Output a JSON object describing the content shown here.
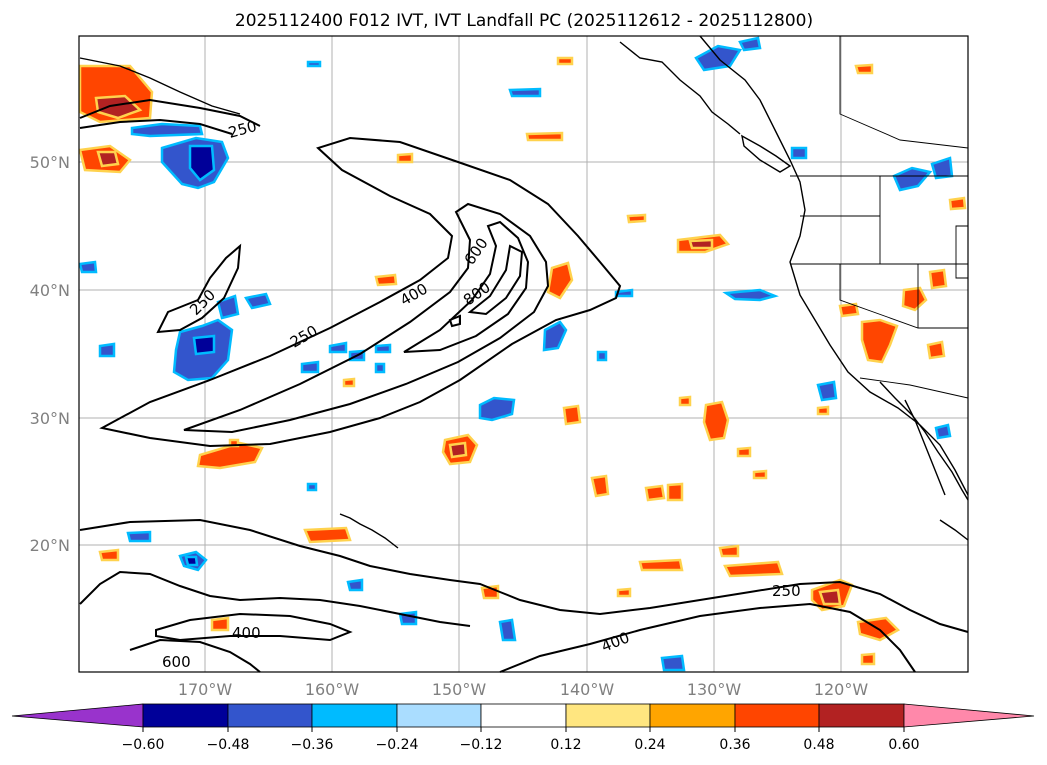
{
  "title": "2025112400 F012 IVT, IVT Landfall PC (2025112612 - 2025112800)",
  "map": {
    "lat_labels": [
      "50°N",
      "40°N",
      "30°N",
      "20°N"
    ],
    "lon_labels": [
      "170°W",
      "160°W",
      "150°W",
      "140°W",
      "130°W",
      "120°W"
    ],
    "contour_labels": {
      "c250_nw": "250",
      "c250_w": "250",
      "c250_mid": "250",
      "c400_mid": "400",
      "c600_mid": "600",
      "c800_mid": "800",
      "c250_se": "250",
      "c400_sw": "400",
      "c600_sw": "600",
      "c400_s": "400"
    },
    "land_fill": "#ffffff",
    "ocean_fill": "#ffffff"
  },
  "colorbar": {
    "tick_labels": [
      "−0.60",
      "−0.48",
      "−0.36",
      "−0.24",
      "−0.12",
      "0.12",
      "0.24",
      "0.36",
      "0.48",
      "0.60"
    ],
    "colors": [
      "#9933cc",
      "#000099",
      "#3355cc",
      "#00bbff",
      "#aaddff",
      "#ffffff",
      "#ffe680",
      "#ffa500",
      "#ff4500",
      "#b22222",
      "#ff88aa"
    ]
  }
}
